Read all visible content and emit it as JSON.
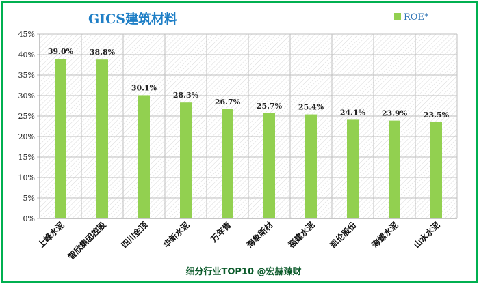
{
  "chart_data": {
    "type": "bar",
    "title": "GICS建筑材料",
    "categories": [
      "上峰水泥",
      "智欣集团控股",
      "四川金顶",
      "华新水泥",
      "万年青",
      "海象新材",
      "福建水泥",
      "凯伦股份",
      "海螺水泥",
      "山水水泥"
    ],
    "series": [
      {
        "name": "ROE*",
        "values": [
          39.0,
          38.8,
          30.1,
          28.3,
          26.7,
          25.7,
          25.4,
          24.1,
          23.9,
          23.5
        ],
        "value_labels": [
          "39.0%",
          "38.8%",
          "30.1%",
          "28.3%",
          "26.7%",
          "25.7%",
          "25.4%",
          "24.1%",
          "23.9%",
          "23.5%"
        ],
        "color": "#92d050"
      }
    ],
    "y_ticks": [
      "0%",
      "5%",
      "10%",
      "15%",
      "20%",
      "25%",
      "30%",
      "35%",
      "40%",
      "45%"
    ],
    "ylim": [
      0,
      45
    ],
    "legend_position": "top-right",
    "grid": true
  },
  "footer": "细分行业TOP10 @宏赫臻财",
  "colors": {
    "border": "#00b050",
    "bar": "#92d050",
    "title": "#1f7fc6"
  }
}
